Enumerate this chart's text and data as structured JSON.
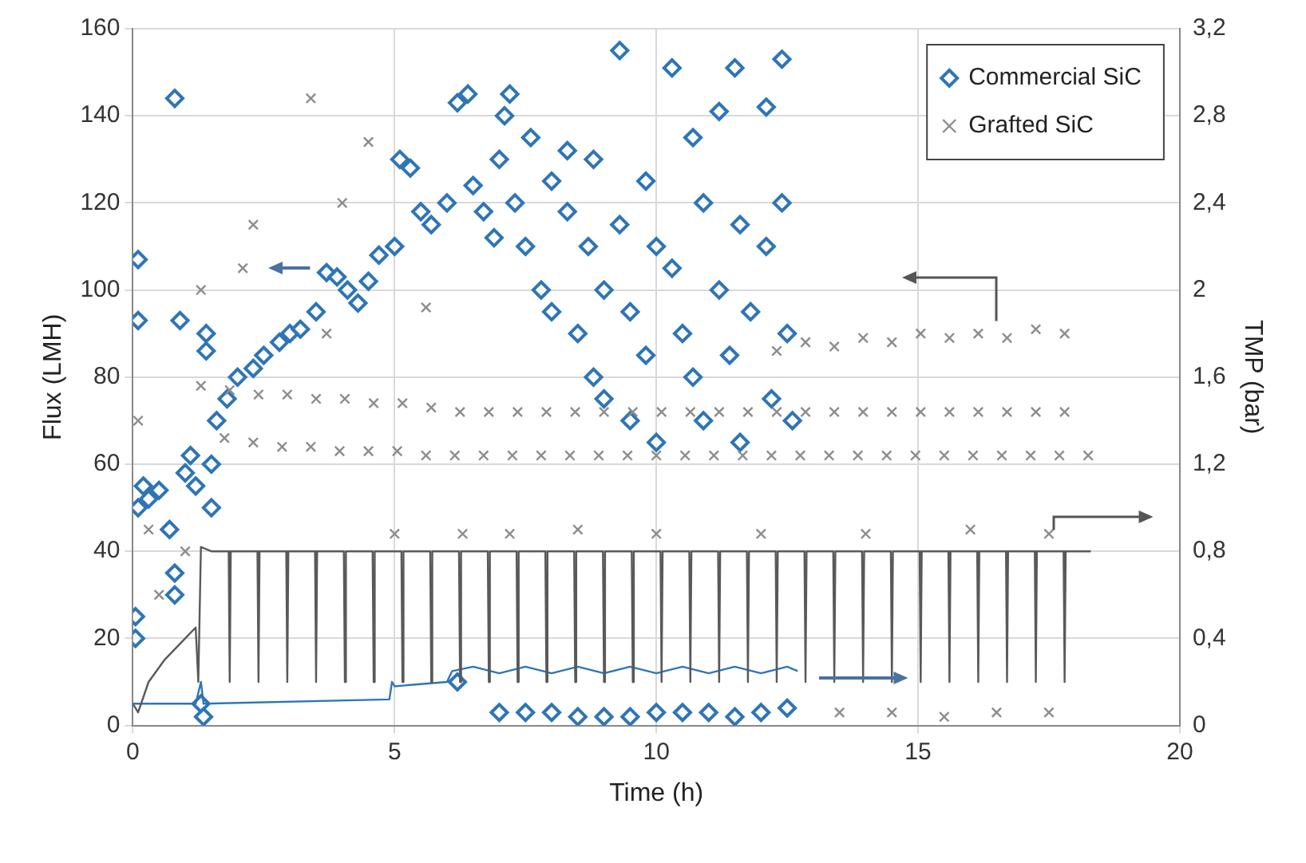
{
  "chart_data": {
    "type": "scatter",
    "xlabel": "Time (h)",
    "ylabel": "Flux (LMH)",
    "y2label": "TMP (bar)",
    "xlim": [
      0,
      20
    ],
    "xticks": [
      0,
      5,
      10,
      15,
      20
    ],
    "ylim": [
      0,
      160
    ],
    "yticks": [
      0,
      20,
      40,
      60,
      80,
      100,
      120,
      140,
      160
    ],
    "y2lim": [
      0,
      3.2
    ],
    "y2ticks": [
      0,
      {
        "value": 0.4,
        "label": "0,4"
      },
      {
        "value": 0.8,
        "label": "0,8"
      },
      {
        "value": 1.2,
        "label": "1,2"
      },
      {
        "value": 1.6,
        "label": "1,6"
      },
      2,
      {
        "value": 2.4,
        "label": "2,4"
      },
      {
        "value": 2.8,
        "label": "2,8"
      },
      {
        "value": 3.2,
        "label": "3,2"
      }
    ],
    "grid": true,
    "legend": "top right",
    "series": [
      {
        "type": "line",
        "axis": "y2",
        "color": "#595959",
        "marker": "none",
        "x": [
          0,
          0.1,
          0.3,
          0.6,
          1.0,
          1.2,
          1.25,
          1.3,
          1.5,
          1.83,
          1.85,
          1.87,
          2.38,
          2.4,
          2.42,
          2.93,
          2.95,
          2.97,
          3.48,
          3.5,
          3.52,
          4.03,
          4.05,
          4.07,
          4.58,
          4.6,
          4.62,
          5.13,
          5.15,
          5.17,
          5.68,
          5.7,
          5.72,
          6.23,
          6.25,
          6.27,
          6.78,
          6.8,
          6.82,
          7.33,
          7.35,
          7.37,
          7.88,
          7.9,
          7.92,
          8.43,
          8.45,
          8.47,
          8.98,
          9.0,
          9.02,
          9.53,
          9.55,
          9.57,
          10.08,
          10.1,
          10.12,
          10.63,
          10.65,
          10.67,
          11.18,
          11.2,
          11.22,
          11.73,
          11.75,
          11.77,
          12.28,
          12.3,
          12.32,
          12.83,
          12.85,
          12.87,
          13.38,
          13.4,
          13.42,
          13.93,
          13.95,
          13.97,
          14.48,
          14.5,
          14.52,
          15.03,
          15.05,
          15.07,
          15.58,
          15.6,
          15.62,
          16.13,
          16.15,
          16.17,
          16.68,
          16.7,
          16.72,
          17.23,
          17.25,
          17.27,
          17.78,
          17.8,
          17.82,
          18.3
        ],
        "values": [
          0.1,
          0.06,
          0.2,
          0.3,
          0.4,
          0.45,
          0.2,
          0.82,
          0.8,
          0.8,
          0.2,
          0.8,
          0.8,
          0.2,
          0.8,
          0.8,
          0.2,
          0.8,
          0.8,
          0.2,
          0.8,
          0.8,
          0.2,
          0.8,
          0.8,
          0.2,
          0.8,
          0.8,
          0.2,
          0.8,
          0.8,
          0.2,
          0.8,
          0.8,
          0.2,
          0.8,
          0.8,
          0.2,
          0.8,
          0.8,
          0.2,
          0.8,
          0.8,
          0.2,
          0.8,
          0.8,
          0.2,
          0.8,
          0.8,
          0.2,
          0.8,
          0.8,
          0.2,
          0.8,
          0.8,
          0.2,
          0.8,
          0.8,
          0.2,
          0.8,
          0.8,
          0.2,
          0.8,
          0.8,
          0.2,
          0.8,
          0.8,
          0.2,
          0.8,
          0.8,
          0.2,
          0.8,
          0.8,
          0.2,
          0.8,
          0.8,
          0.2,
          0.8,
          0.8,
          0.2,
          0.8,
          0.8,
          0.2,
          0.8,
          0.8,
          0.2,
          0.8,
          0.8,
          0.2,
          0.8,
          0.8,
          0.2,
          0.8,
          0.8,
          0.2,
          0.8,
          0.8,
          0.2,
          0.8,
          0.8
        ]
      },
      {
        "type": "line",
        "axis": "y2",
        "color": "#2e75b6",
        "marker": "none",
        "x": [
          0,
          1.2,
          1.3,
          1.35,
          4.9,
          4.95,
          5.0,
          6.0,
          6.1,
          6.5,
          7.0,
          7.5,
          8.0,
          8.5,
          9.0,
          9.5,
          10.0,
          10.5,
          11.0,
          11.5,
          12.0,
          12.5,
          12.7
        ],
        "values": [
          0.1,
          0.1,
          0.2,
          0.1,
          0.12,
          0.2,
          0.18,
          0.2,
          0.25,
          0.27,
          0.24,
          0.27,
          0.24,
          0.27,
          0.24,
          0.27,
          0.24,
          0.27,
          0.24,
          0.27,
          0.24,
          0.27,
          0.25
        ]
      },
      {
        "name": "Grafted SiC",
        "type": "scatter",
        "color": "#8c8c8c",
        "marker": "cross",
        "x": [
          1.3,
          1.75,
          1.85,
          2.3,
          2.4,
          2.85,
          2.95,
          3.4,
          3.5,
          3.95,
          4.05,
          4.5,
          4.6,
          5.05,
          5.15,
          5.6,
          5.7,
          6.15,
          6.25,
          6.7,
          6.8,
          7.25,
          7.35,
          7.8,
          7.9,
          8.35,
          8.45,
          8.9,
          9.0,
          9.45,
          9.55,
          10.0,
          10.1,
          10.55,
          10.65,
          11.1,
          11.2,
          11.65,
          11.75,
          12.2,
          12.3,
          12.75,
          12.85,
          13.3,
          13.4,
          13.85,
          13.95,
          14.4,
          14.5,
          14.95,
          15.05,
          15.5,
          15.6,
          16.05,
          16.15,
          16.6,
          16.7,
          17.15,
          17.25,
          17.7,
          17.8,
          18.25,
          12.3,
          12.85,
          13.4,
          13.95,
          14.5,
          15.05,
          15.6,
          16.15,
          16.7,
          17.25,
          17.8,
          0.1,
          0.3,
          0.5,
          1.0,
          2.1,
          2.3,
          3.4,
          4.0,
          4.5,
          3.7,
          5.0,
          5.6,
          6.3,
          7.2,
          8.5,
          10.0,
          12.0,
          14.0,
          16.0,
          17.5,
          13.5,
          14.5,
          15.5,
          16.5,
          17.5,
          1.3
        ],
        "values": [
          78,
          66,
          77,
          65,
          76,
          64,
          76,
          64,
          75,
          63,
          75,
          63,
          74,
          63,
          74,
          62,
          73,
          62,
          72,
          62,
          72,
          62,
          72,
          62,
          72,
          62,
          72,
          62,
          72,
          62,
          72,
          62,
          72,
          62,
          72,
          62,
          72,
          62,
          72,
          62,
          72,
          62,
          72,
          62,
          72,
          62,
          72,
          62,
          72,
          62,
          72,
          62,
          72,
          62,
          72,
          62,
          72,
          62,
          72,
          62,
          72,
          62,
          86,
          88,
          87,
          89,
          88,
          90,
          89,
          90,
          89,
          91,
          90,
          70,
          45,
          30,
          40,
          105,
          115,
          144,
          120,
          134,
          90,
          44,
          96,
          44,
          44,
          45,
          44,
          44,
          44,
          45,
          44,
          3,
          3,
          2,
          3,
          3,
          100
        ]
      },
      {
        "name": "Commercial SiC",
        "type": "scatter",
        "color": "#2e75b6",
        "marker": "diamond",
        "x": [
          0.05,
          0.05,
          0.1,
          0.1,
          0.1,
          0.2,
          0.3,
          0.5,
          0.7,
          0.8,
          0.8,
          0.8,
          0.9,
          1.0,
          1.1,
          1.2,
          1.3,
          1.35,
          1.4,
          1.4,
          1.5,
          1.5,
          1.6,
          1.8,
          2.0,
          2.3,
          2.5,
          2.8,
          3.0,
          3.2,
          3.5,
          3.7,
          3.9,
          4.1,
          4.3,
          4.5,
          4.7,
          5.0,
          5.1,
          5.3,
          5.5,
          5.7,
          6.0,
          6.2,
          6.4,
          6.5,
          6.7,
          6.9,
          6.2,
          7.1,
          7.2,
          7.0,
          7.3,
          7.5,
          7.6,
          7.8,
          8.0,
          8.0,
          8.3,
          8.3,
          8.5,
          8.7,
          8.8,
          8.8,
          9.0,
          9.0,
          9.3,
          9.3,
          9.5,
          9.5,
          9.8,
          9.8,
          10.0,
          10.0,
          10.3,
          10.3,
          10.5,
          10.7,
          10.7,
          10.9,
          10.9,
          11.2,
          11.2,
          11.4,
          11.5,
          11.6,
          11.6,
          11.8,
          12.1,
          12.1,
          12.2,
          12.4,
          12.4,
          12.5,
          12.6,
          7.0,
          7.5,
          8.0,
          8.5,
          9.0,
          9.5,
          10.0,
          10.5,
          11.0,
          11.5,
          12.0,
          12.5
        ],
        "values": [
          20,
          25,
          50,
          93,
          107,
          55,
          52,
          54,
          45,
          35,
          30,
          144,
          93,
          58,
          62,
          55,
          5,
          2,
          90,
          86,
          60,
          50,
          70,
          75,
          80,
          82,
          85,
          88,
          90,
          91,
          95,
          104,
          103,
          100,
          97,
          102,
          108,
          110,
          130,
          128,
          118,
          115,
          120,
          143,
          145,
          124,
          118,
          112,
          10,
          140,
          145,
          130,
          120,
          110,
          135,
          100,
          125,
          95,
          132,
          118,
          90,
          110,
          130,
          80,
          100,
          75,
          155,
          115,
          95,
          70,
          125,
          85,
          110,
          65,
          151,
          105,
          90,
          135,
          80,
          120,
          70,
          141,
          100,
          85,
          151,
          115,
          65,
          95,
          142,
          110,
          75,
          153,
          120,
          90,
          70,
          3,
          3,
          3,
          2,
          2,
          2,
          3,
          3,
          3,
          2,
          3,
          4
        ]
      }
    ]
  }
}
